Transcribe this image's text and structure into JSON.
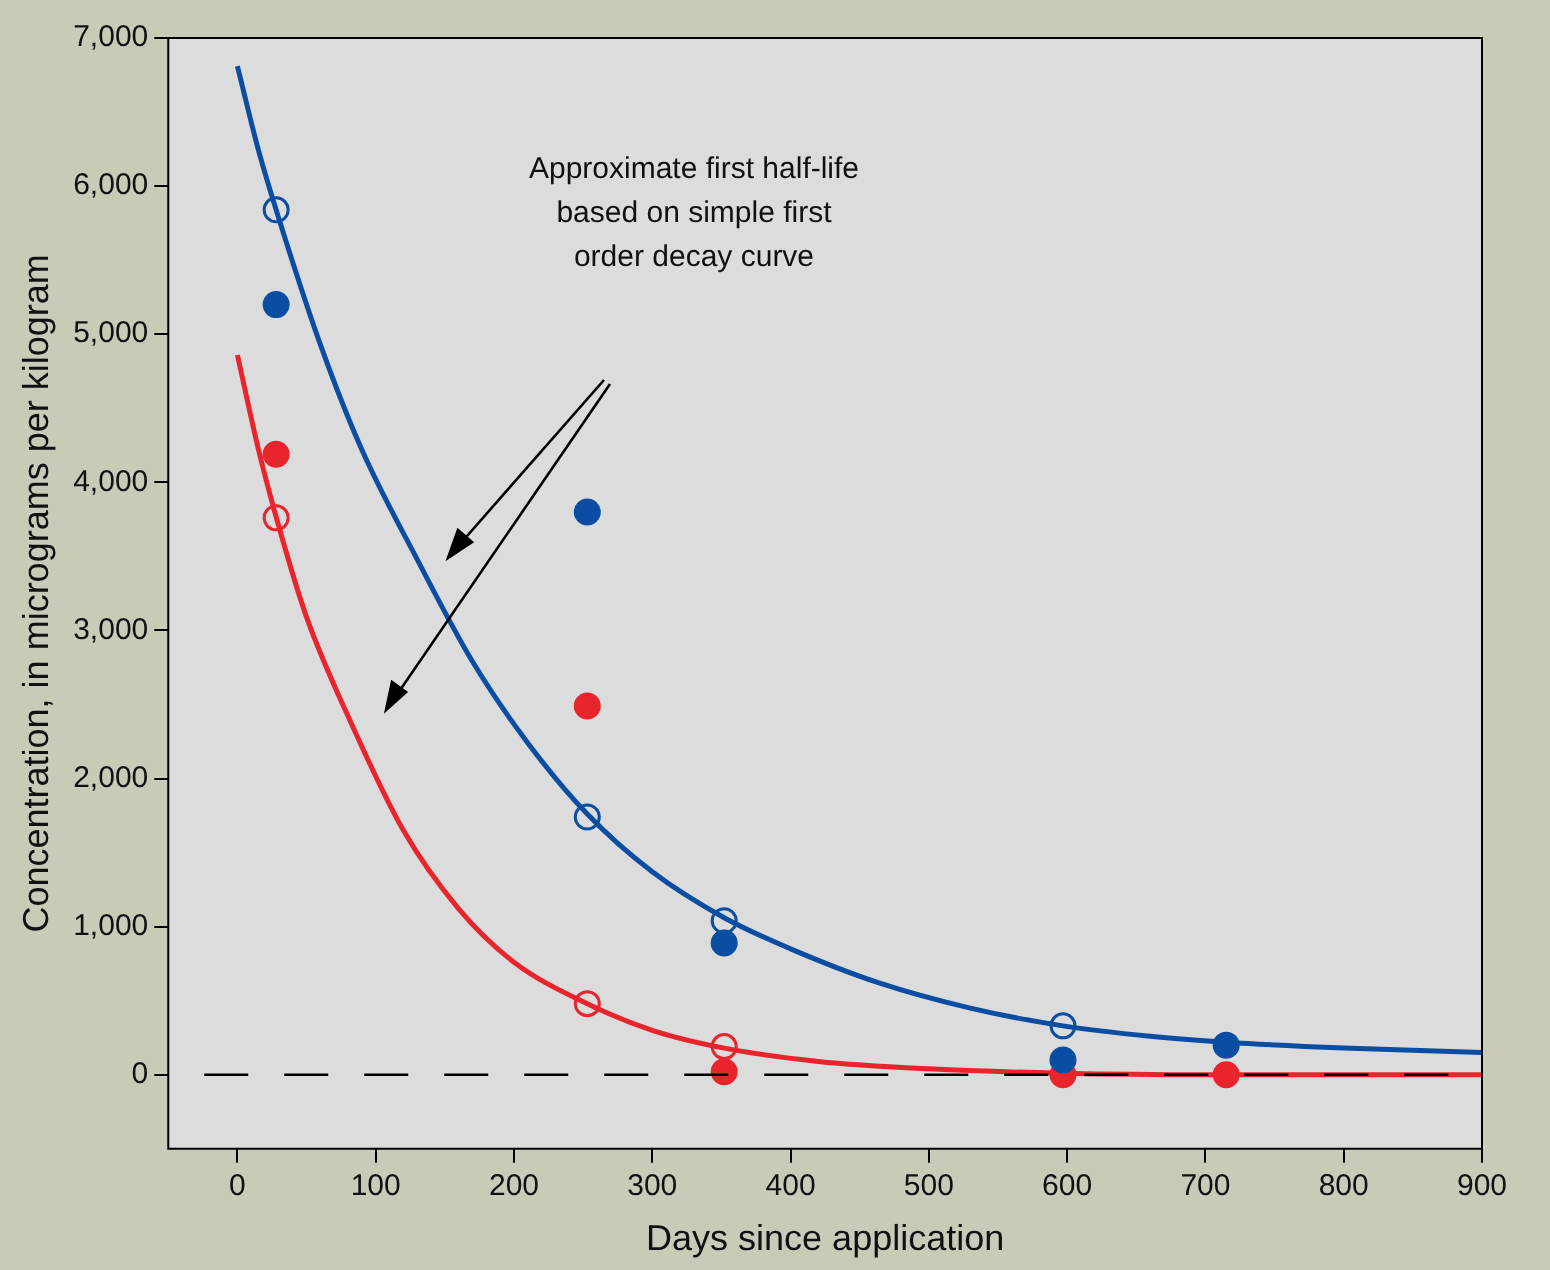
{
  "chart_data": {
    "type": "scatter",
    "xlabel": "Days since application",
    "ylabel": "Concentration, in micrograms per kilogram",
    "xlim": [
      -50,
      900
    ],
    "xticks": [
      0,
      100,
      200,
      300,
      400,
      500,
      600,
      700,
      800,
      900
    ],
    "ylim": [
      -500,
      7000
    ],
    "yticks": [
      {
        "value": 0,
        "label": "0"
      },
      {
        "value": 1000,
        "label": "1,000"
      },
      {
        "value": 2000,
        "label": "2,000"
      },
      {
        "value": 3000,
        "label": "3,000"
      },
      {
        "value": 4000,
        "label": "4,000"
      },
      {
        "value": 5000,
        "label": "5,000"
      },
      {
        "value": 6000,
        "label": "6,000"
      },
      {
        "value": 7000,
        "label": "7,000"
      }
    ],
    "grid": false,
    "legend": false,
    "annotations": [
      "Approximate first half-life based on simple first order decay curve"
    ],
    "ref_lines": [
      {
        "axis": "y",
        "value": 0,
        "color": "#000000",
        "line_style": "dashed"
      }
    ],
    "series": [
      {
        "type": "line",
        "color": "#0a4da2",
        "marker": "none",
        "x": [
          0,
          15,
          30,
          60,
          90,
          130,
          170,
          210,
          253,
          300,
          352,
          400,
          464,
          530,
          597,
          660,
          715,
          800,
          900
        ],
        "values": [
          6810,
          6250,
          5780,
          4930,
          4220,
          3480,
          2790,
          2240,
          1760,
          1370,
          1060,
          850,
          620,
          450,
          330,
          260,
          220,
          180,
          150
        ]
      },
      {
        "type": "line",
        "color": "#e8242c",
        "marker": "none",
        "x": [
          0,
          15,
          30,
          50,
          81,
          120,
          160,
          200,
          253,
          300,
          352,
          420,
          500,
          597,
          700,
          900
        ],
        "values": [
          4860,
          4230,
          3700,
          3090,
          2400,
          1650,
          1120,
          760,
          480,
          300,
          180,
          90,
          40,
          10,
          0,
          0
        ]
      },
      {
        "color": "#0a4da2",
        "marker": "circle",
        "x": [
          28,
          253,
          352,
          597,
          715
        ],
        "values": [
          5200,
          3800,
          890,
          100,
          200
        ]
      },
      {
        "color": "#0a4da2",
        "marker": "circle",
        "x": [
          28,
          253,
          352,
          597
        ],
        "values": [
          5840,
          1740,
          1040,
          330
        ]
      },
      {
        "color": "#e8242c",
        "marker": "circle",
        "x": [
          28,
          253,
          352,
          597,
          715
        ],
        "values": [
          4190,
          2490,
          20,
          0,
          0
        ]
      },
      {
        "color": "#e8242c",
        "marker": "circle",
        "x": [
          28,
          253,
          352
        ],
        "values": [
          3760,
          480,
          190
        ]
      }
    ]
  }
}
